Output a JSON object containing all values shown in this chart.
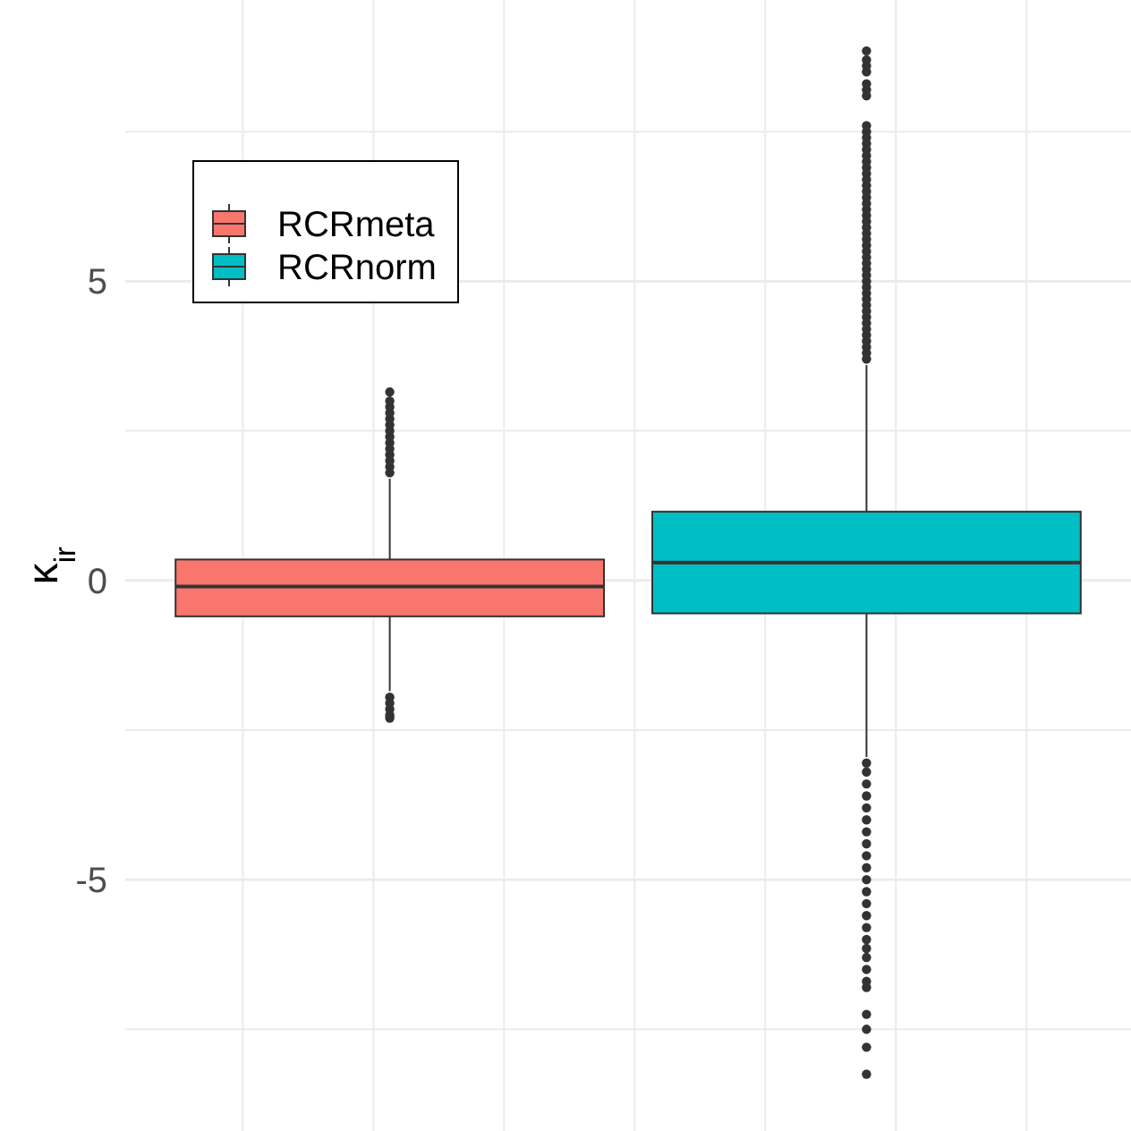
{
  "chart_data": {
    "type": "box",
    "ylabel": "κ$_{ir}$",
    "categories": [
      null
    ],
    "ylim": [
      -9.2,
      9.7
    ],
    "yticks": [
      {
        "value": -7.5,
        "label": null
      },
      -5,
      {
        "value": -2.5,
        "label": null
      },
      0,
      {
        "value": 2.5,
        "label": null
      },
      5,
      {
        "value": 7.5,
        "label": null
      }
    ],
    "grid": true,
    "legend": "top left",
    "series": [
      {
        "name": "RCRmeta",
        "color": "#f8766d",
        "boxes": [
          {
            "low": -1.85,
            "q1": -0.6,
            "median": -0.1,
            "q3": 0.35,
            "high": 1.7,
            "outliers": [
              1.8,
              1.9,
              2.0,
              2.1,
              2.2,
              2.3,
              2.4,
              2.5,
              2.6,
              2.7,
              2.8,
              2.9,
              3.0,
              3.15,
              -1.95,
              -2.05,
              -2.15,
              -2.25,
              -2.3
            ]
          }
        ]
      },
      {
        "name": "RCRnorm",
        "color": "#00bfc4",
        "boxes": [
          {
            "low": -2.95,
            "q1": -0.55,
            "median": 0.3,
            "q3": 1.15,
            "high": 3.6,
            "outliers": [
              3.7,
              3.8,
              3.9,
              4.0,
              4.1,
              4.2,
              4.3,
              4.4,
              4.5,
              4.6,
              4.7,
              4.8,
              4.9,
              5.0,
              5.1,
              5.2,
              5.3,
              5.4,
              5.5,
              5.6,
              5.7,
              5.8,
              5.9,
              6.0,
              6.1,
              6.2,
              6.3,
              6.4,
              6.5,
              6.6,
              6.7,
              6.8,
              6.9,
              7.0,
              7.1,
              7.2,
              7.3,
              7.4,
              7.5,
              7.6,
              8.1,
              8.2,
              8.3,
              8.5,
              8.6,
              8.7,
              8.85,
              -3.05,
              -3.2,
              -3.4,
              -3.6,
              -3.8,
              -4.0,
              -4.2,
              -4.4,
              -4.6,
              -4.8,
              -5.0,
              -5.2,
              -5.4,
              -5.6,
              -5.8,
              -6.0,
              -6.15,
              -6.3,
              -6.5,
              -6.7,
              -6.8,
              -7.25,
              -7.5,
              -7.8,
              -8.25
            ]
          }
        ]
      }
    ]
  }
}
